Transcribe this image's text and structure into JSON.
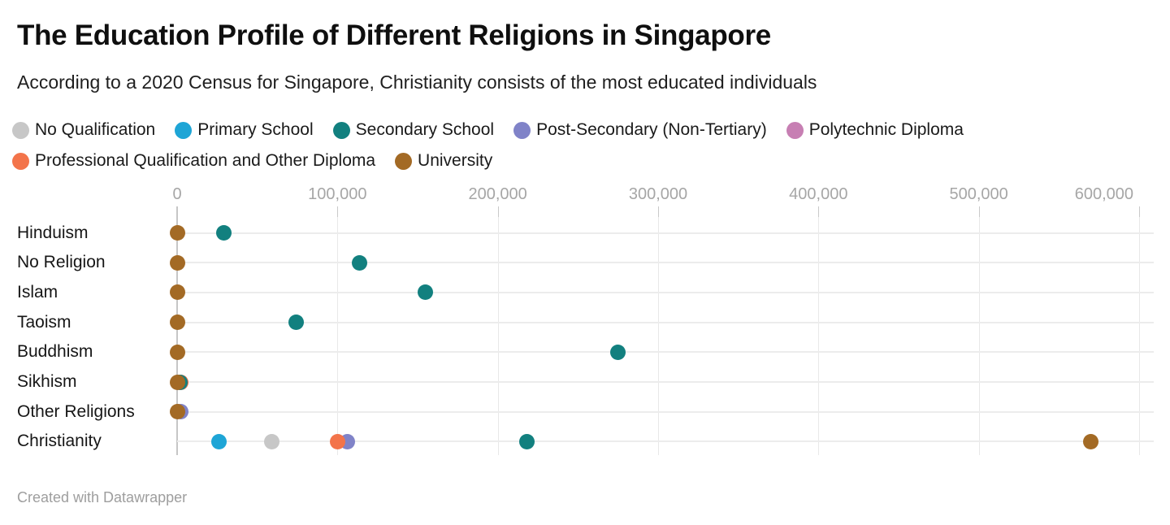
{
  "header": {
    "title": "The Education Profile of Different Religions in Singapore",
    "subtitle": "According to a 2020 Census for Singapore, Christianity consists of the most educated individuals"
  },
  "footer": {
    "credit": "Created with Datawrapper"
  },
  "chart_data": {
    "type": "scatter",
    "subtype": "dot-plot",
    "title": "The Education Profile of Different Religions in Singapore",
    "xlabel": "",
    "ylabel": "",
    "grid": true,
    "legend_position": "top",
    "x_axis": {
      "min": 0,
      "max": 600000,
      "tick_interval": 100000,
      "ticks": [
        {
          "value": 0,
          "label": "0"
        },
        {
          "value": 100000,
          "label": "100,000"
        },
        {
          "value": 200000,
          "label": "200,000"
        },
        {
          "value": 300000,
          "label": "300,000"
        },
        {
          "value": 400000,
          "label": "400,000"
        },
        {
          "value": 500000,
          "label": "500,000"
        },
        {
          "value": 600000,
          "label": "600,000"
        }
      ]
    },
    "series": [
      {
        "name": "No Qualification",
        "color": "#c7c7c7"
      },
      {
        "name": "Primary School",
        "color": "#1ea5d6"
      },
      {
        "name": "Secondary School",
        "color": "#12807f"
      },
      {
        "name": "Post-Secondary (Non-Tertiary)",
        "color": "#8083c8"
      },
      {
        "name": "Polytechnic Diploma",
        "color": "#c77fb3"
      },
      {
        "name": "Professional Qualification and Other Diploma",
        "color": "#f3744a"
      },
      {
        "name": "University",
        "color": "#a36a25"
      }
    ],
    "rows": [
      {
        "label": "Hinduism",
        "dots": [
          {
            "series": "Secondary School",
            "value": 29000
          },
          {
            "series": "University",
            "value": 0
          }
        ]
      },
      {
        "label": "No Religion",
        "dots": [
          {
            "series": "Secondary School",
            "value": 114000
          },
          {
            "series": "University",
            "value": 0
          }
        ]
      },
      {
        "label": "Islam",
        "dots": [
          {
            "series": "Secondary School",
            "value": 155000
          },
          {
            "series": "University",
            "value": 0
          }
        ]
      },
      {
        "label": "Taoism",
        "dots": [
          {
            "series": "Secondary School",
            "value": 74000
          },
          {
            "series": "University",
            "value": 0
          }
        ]
      },
      {
        "label": "Buddhism",
        "dots": [
          {
            "series": "Secondary School",
            "value": 275000
          },
          {
            "series": "University",
            "value": 0
          }
        ]
      },
      {
        "label": "Sikhism",
        "dots": [
          {
            "series": "Professional Qualification and Other Diploma",
            "value": 2500
          },
          {
            "series": "Secondary School",
            "value": 2000
          },
          {
            "series": "University",
            "value": 0
          }
        ]
      },
      {
        "label": "Other Religions",
        "dots": [
          {
            "series": "Post-Secondary (Non-Tertiary)",
            "value": 2500
          },
          {
            "series": "University",
            "value": 0
          }
        ]
      },
      {
        "label": "Christianity",
        "dots": [
          {
            "series": "Primary School",
            "value": 26000
          },
          {
            "series": "No Qualification",
            "value": 59000
          },
          {
            "series": "Post-Secondary (Non-Tertiary)",
            "value": 106000
          },
          {
            "series": "Professional Qualification and Other Diploma",
            "value": 100000
          },
          {
            "series": "Secondary School",
            "value": 218000
          },
          {
            "series": "University",
            "value": 570000
          }
        ]
      }
    ]
  }
}
